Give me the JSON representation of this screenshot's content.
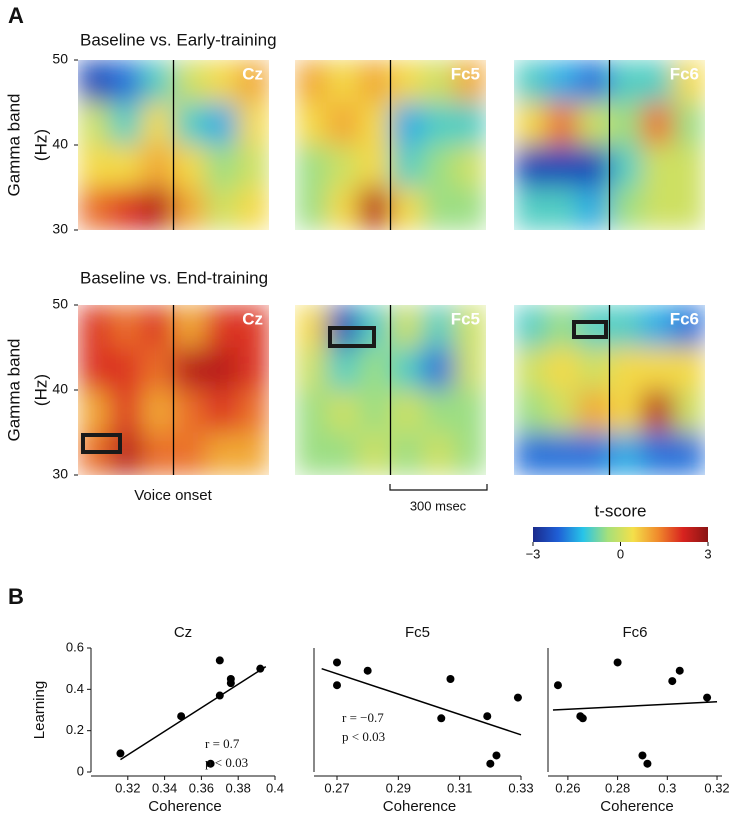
{
  "figure": {
    "panel_a_label": "A",
    "panel_b_label": "B",
    "row_titles": [
      "Baseline vs. Early-training",
      "Baseline vs. End-training"
    ],
    "onset_label": "Voice onset",
    "scale_bar_label": "300 msec"
  },
  "chart_data": [
    {
      "type": "heatmap",
      "name": "Cz",
      "ylim": [
        30,
        50
      ],
      "yticks": [
        30,
        40,
        50
      ],
      "ylabel": [
        "Gamma band",
        "(Hz)"
      ],
      "values": [
        [
          -2.5,
          -2,
          -1,
          0,
          0.5,
          1
        ],
        [
          0,
          -1,
          0.5,
          -1,
          -1.5,
          0.5
        ],
        [
          0.5,
          0.5,
          1,
          0.5,
          -0.5,
          0
        ],
        [
          1.5,
          2,
          2.5,
          1,
          0,
          0.5
        ]
      ]
    },
    {
      "type": "heatmap",
      "name": "Fc5",
      "ylim": [
        30,
        50
      ],
      "values": [
        [
          1,
          0.5,
          1,
          0.5,
          0,
          1
        ],
        [
          0.5,
          1,
          0.5,
          -1.5,
          -1,
          -1
        ],
        [
          -0.5,
          0,
          0.5,
          -1,
          -0.5,
          0
        ],
        [
          -0.5,
          0.5,
          2.5,
          0.5,
          -0.5,
          -0.5
        ]
      ]
    },
    {
      "type": "heatmap",
      "name": "Fc6",
      "ylim": [
        30,
        50
      ],
      "values": [
        [
          -1,
          -1.5,
          -2,
          -1,
          -1,
          0.5
        ],
        [
          0.5,
          1.5,
          0,
          -0.5,
          1.5,
          -0.5
        ],
        [
          -2.5,
          -2.5,
          -2.5,
          -1,
          0,
          0
        ],
        [
          -1,
          -1,
          -1.5,
          -0.5,
          0,
          0
        ]
      ]
    },
    {
      "type": "heatmap",
      "name": "Cz",
      "ylim": [
        30,
        50
      ],
      "yticks": [
        30,
        40,
        50
      ],
      "ylabel": [
        "Gamma band",
        "(Hz)"
      ],
      "values": [
        [
          2,
          1.5,
          2,
          1,
          2,
          2
        ],
        [
          2,
          2,
          1.5,
          2.5,
          2.5,
          2
        ],
        [
          1,
          2,
          1,
          1.5,
          2,
          1.5
        ],
        [
          1.5,
          2.5,
          1.5,
          1.5,
          1,
          1
        ]
      ]
    },
    {
      "type": "heatmap",
      "name": "Fc5",
      "ylim": [
        30,
        50
      ],
      "values": [
        [
          0.5,
          -2.5,
          -1,
          0,
          -1,
          0
        ],
        [
          0,
          -1,
          -0.5,
          -1,
          -2,
          0
        ],
        [
          -0.5,
          0,
          -0.5,
          0,
          -0.5,
          -0.5
        ],
        [
          -0.5,
          -0.5,
          0,
          -0.5,
          0,
          -0.5
        ]
      ]
    },
    {
      "type": "heatmap",
      "name": "Fc6",
      "ylim": [
        30,
        50
      ],
      "values": [
        [
          -1,
          -0.5,
          -1,
          -1,
          -1.5,
          -2
        ],
        [
          0,
          0.5,
          0,
          0.5,
          0.5,
          0.5
        ],
        [
          -0.5,
          0,
          1,
          0.5,
          2.5,
          0
        ],
        [
          -2,
          -2,
          -2,
          -1.5,
          -2,
          -2
        ]
      ]
    },
    {
      "type": "colorbar",
      "title": "t-score",
      "lim": [
        -3,
        3
      ],
      "ticks": [
        {
          "value": -3,
          "label": "−3"
        },
        0,
        3
      ],
      "colors": [
        "#1a2a8c",
        "#1f5fd6",
        "#27c4e8",
        "#a6e07a",
        "#f4e04a",
        "#f08a2c",
        "#d8231f",
        "#8a1414"
      ]
    },
    {
      "type": "scatter",
      "title": "Cz",
      "xlabel": "Coherence",
      "ylabel": "Learning",
      "color": "#000000",
      "x": [
        0.316,
        0.349,
        0.365,
        0.37,
        0.37,
        0.376,
        0.376,
        0.392
      ],
      "values": [
        0.09,
        0.27,
        0.04,
        0.54,
        0.37,
        0.45,
        0.43,
        0.5
      ],
      "xlim": [
        0.3,
        0.4
      ],
      "xticks": [
        0.32,
        0.34,
        0.36,
        0.38,
        0.4
      ],
      "ylim": [
        0,
        0.6
      ],
      "yticks": [
        0,
        0.2,
        0.4,
        0.6
      ],
      "trend": {
        "x": [
          0.316,
          0.395
        ],
        "values": [
          0.06,
          0.51
        ]
      },
      "annotations": [
        "r = 0.7",
        "p < 0.03"
      ]
    },
    {
      "type": "scatter",
      "title": "Fc5",
      "xlabel": "Coherence",
      "color": "#000000",
      "x": [
        0.27,
        0.27,
        0.28,
        0.304,
        0.307,
        0.319,
        0.32,
        0.322,
        0.329
      ],
      "values": [
        0.53,
        0.42,
        0.49,
        0.26,
        0.45,
        0.27,
        0.04,
        0.08,
        0.36
      ],
      "xlim": [
        0.2625,
        0.33
      ],
      "xticks": [
        0.27,
        0.29,
        0.31,
        0.33
      ],
      "ylim": [
        0,
        0.6
      ],
      "trend": {
        "x": [
          0.265,
          0.33
        ],
        "values": [
          0.5,
          0.18
        ]
      },
      "annotations": [
        "r = −0.7",
        "p < 0.03"
      ]
    },
    {
      "type": "scatter",
      "title": "Fc6",
      "xlabel": "Coherence",
      "color": "#000000",
      "x": [
        0.256,
        0.265,
        0.266,
        0.28,
        0.29,
        0.292,
        0.302,
        0.305,
        0.316
      ],
      "values": [
        0.42,
        0.27,
        0.26,
        0.53,
        0.08,
        0.04,
        0.44,
        0.49,
        0.36
      ],
      "xlim": [
        0.252,
        0.322
      ],
      "xticks": [
        0.26,
        0.28,
        0.3,
        0.32
      ],
      "ylim": [
        0,
        0.6
      ],
      "trend": {
        "x": [
          0.254,
          0.32
        ],
        "values": [
          0.3,
          0.34
        ]
      }
    }
  ]
}
